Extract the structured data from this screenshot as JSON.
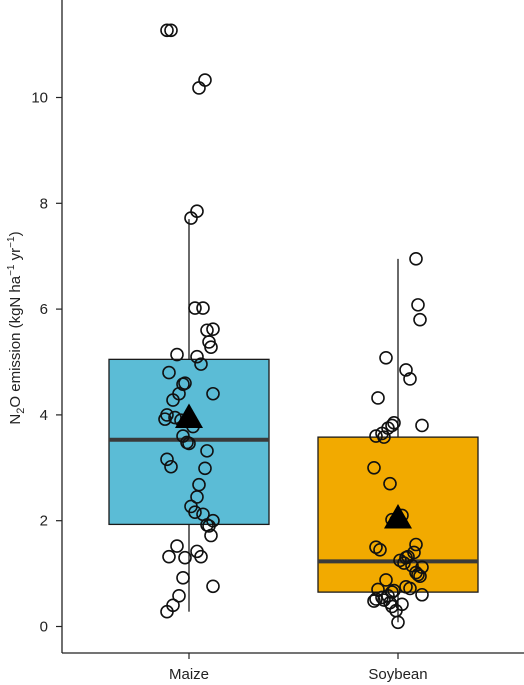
{
  "chart_data": {
    "type": "box",
    "categories": [
      "Maize",
      "Soybean"
    ],
    "ylabel": {
      "base": "N",
      "sub": "2",
      "rest": "O emission (kgN ha",
      "sup1": "−1",
      "mid": " yr",
      "sup2": "−1",
      "end": ")"
    },
    "ylim": [
      -0.5,
      12.3
    ],
    "yticks": [
      0,
      2,
      4,
      6,
      8,
      10
    ],
    "colors": {
      "Maize": "#5bbcd6",
      "Soybean": "#f2aa00",
      "median": "#3a3a3a",
      "outline": "#1a1a1a"
    },
    "boxes": [
      {
        "category": "Maize",
        "whisker_low": 0.28,
        "q1": 1.93,
        "median": 3.53,
        "q3": 5.05,
        "whisker_high": 7.7,
        "mean": 3.95
      },
      {
        "category": "Soybean",
        "whisker_low": 0.08,
        "q1": 0.65,
        "median": 1.23,
        "q3": 3.58,
        "whisker_high": 6.95,
        "mean": 2.05
      }
    ],
    "points": [
      {
        "category": "Maize",
        "values": [
          11.27,
          11.27,
          10.33,
          10.18,
          7.85,
          7.72,
          6.02,
          6.02,
          5.62,
          5.6,
          5.38,
          5.28,
          5.14,
          5.1,
          4.96,
          4.8,
          4.6,
          4.58,
          4.4,
          4.4,
          4.28,
          4.0,
          3.95,
          3.92,
          3.9,
          3.78,
          3.6,
          3.48,
          3.46,
          3.32,
          3.16,
          3.02,
          2.99,
          2.68,
          2.45,
          2.27,
          2.16,
          2.12,
          2.0,
          1.92,
          1.9,
          1.72,
          1.52,
          1.42,
          1.32,
          1.32,
          1.3,
          0.92,
          0.76,
          0.58,
          0.4,
          0.28
        ]
      },
      {
        "category": "Soybean",
        "values": [
          6.95,
          6.08,
          5.8,
          5.08,
          4.85,
          4.68,
          4.32,
          3.85,
          3.8,
          3.8,
          3.75,
          3.65,
          3.6,
          3.58,
          3.0,
          2.7,
          2.1,
          2.02,
          2.0,
          1.98,
          1.55,
          1.5,
          1.45,
          1.4,
          1.32,
          1.3,
          1.25,
          1.2,
          1.15,
          1.12,
          1.02,
          0.98,
          0.95,
          0.88,
          0.75,
          0.72,
          0.7,
          0.68,
          0.65,
          0.6,
          0.58,
          0.55,
          0.52,
          0.5,
          0.48,
          0.45,
          0.42,
          0.38,
          0.3,
          0.08
        ]
      }
    ]
  }
}
